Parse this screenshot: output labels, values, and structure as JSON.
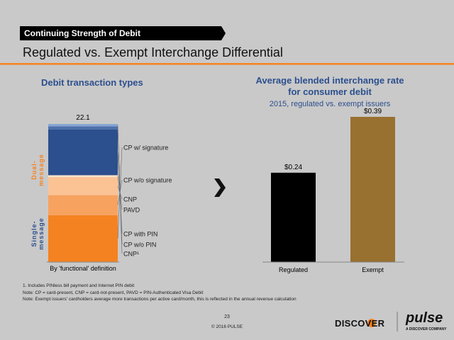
{
  "header": {
    "section": "Continuing Strength of Debit",
    "title": "Regulated vs. Exempt Interchange Differential"
  },
  "chart_data": [
    {
      "type": "stacked-bar",
      "title": "Debit transaction types",
      "categories": [
        "By 'functional' definition"
      ],
      "total": 22.1,
      "series": [
        {
          "name": "CP w/ signature",
          "color": "#f58220",
          "values": [
            7.5
          ]
        },
        {
          "name": "CP w/o signature",
          "color": "#f7a25f",
          "values": [
            3.2
          ]
        },
        {
          "name": "CNP",
          "color": "#fbc394",
          "values": [
            2.9
          ]
        },
        {
          "name": "PAVD",
          "color": "#fde3cb",
          "values": [
            0.3
          ]
        },
        {
          "name": "CP with PIN",
          "color": "#2c4f8e",
          "values": [
            7.3
          ]
        },
        {
          "name": "CP w/o PIN",
          "color": "#4d70aa",
          "values": [
            0.5
          ]
        },
        {
          "name": "CNP¹",
          "color": "#86a6d1",
          "values": [
            0.4
          ]
        }
      ],
      "groups": [
        {
          "lines": [
            "Dual-",
            "message"
          ],
          "color": "#f58220"
        },
        {
          "lines": [
            "Single-",
            "message"
          ],
          "color": "#2c4f8e"
        }
      ]
    },
    {
      "type": "bar",
      "title": "Average blended interchange rate for consumer debit",
      "subtitle": "2015, regulated vs. exempt issuers",
      "categories": [
        "Regulated",
        "Exempt"
      ],
      "values": [
        0.24,
        0.39
      ],
      "value_labels": [
        "$0.24",
        "$0.39"
      ],
      "colors": [
        "#000000",
        "#98702f"
      ]
    }
  ],
  "footnotes": [
    "1. Includes PINless bill payment and Internet PIN debit",
    "Note: CP = card-present, CNP = card-not-present, PAVD = PIN-Authenticated Visa Debit",
    "Note: Exempt issuers' cardholders average more transactions per active card/month, this is reflected in the annual revenue calculation"
  ],
  "footer": {
    "page": "23",
    "copyright": "© 2016 PULSE"
  },
  "logos": {
    "discover": "DISCOVER",
    "pulse": "pulse",
    "tagline": "A DISCOVER COMPANY"
  }
}
